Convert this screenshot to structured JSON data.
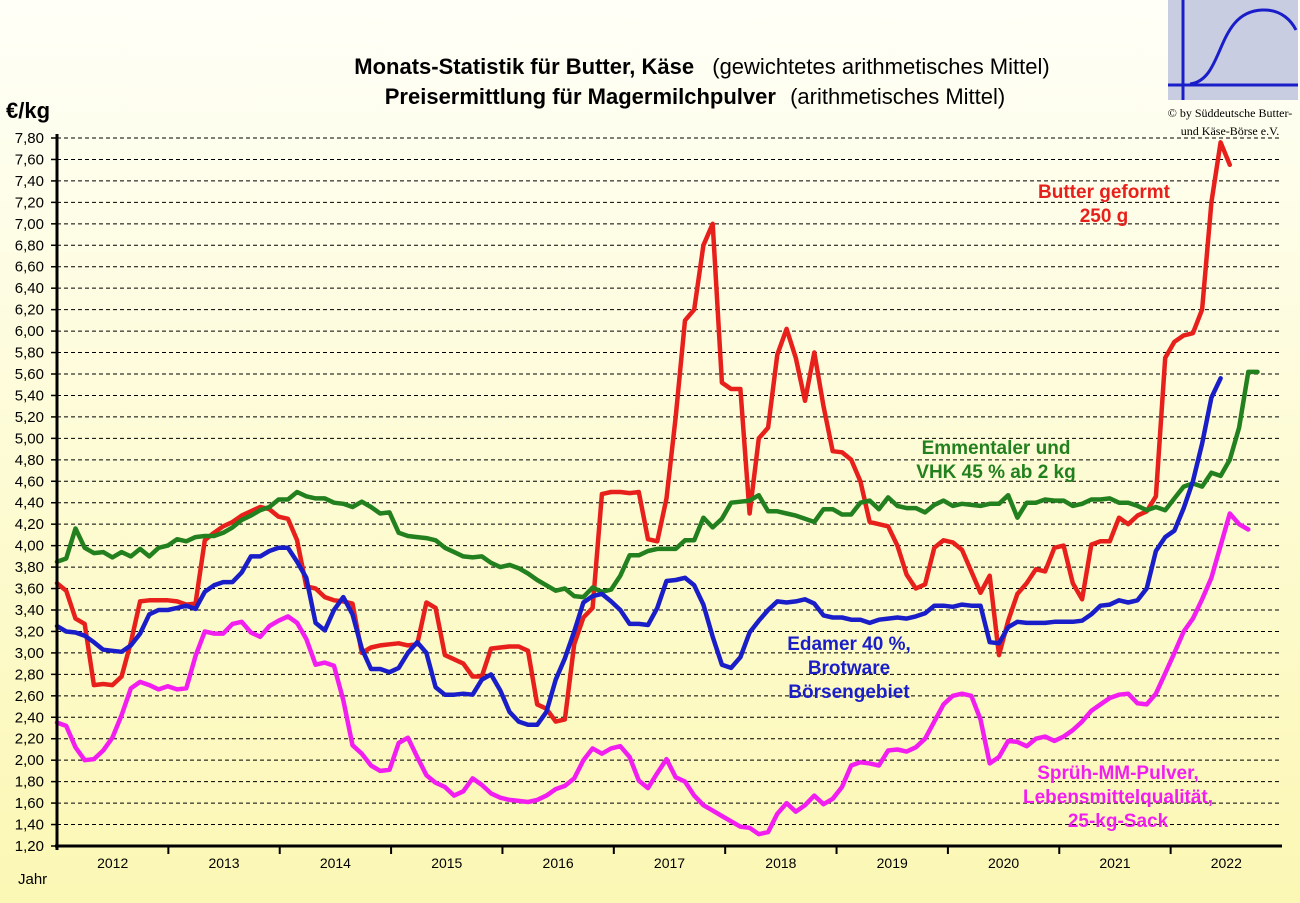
{
  "chart_data": {
    "type": "line",
    "title_line1_bold": "Monats-Statistik für Butter, Käse",
    "title_line1_normal": "(gewichtetes arithmetisches Mittel)",
    "title_line2_bold": "Preisermittlung für Magermilchpulver",
    "title_line2_normal": "(arithmetisches Mittel)",
    "ylabel": "€/kg",
    "xlabel": "Jahr",
    "copyright_line1": "© by Süddeutsche Butter-",
    "copyright_line2": "und Käse-Börse e.V.",
    "logo_icon": "s-curve-logo-icon",
    "ylim": [
      1.2,
      7.8
    ],
    "y_ticks": [
      "1,20",
      "1,40",
      "1,60",
      "1,80",
      "2,00",
      "2,20",
      "2,40",
      "2,60",
      "2,80",
      "3,00",
      "3,20",
      "3,40",
      "3,60",
      "3,80",
      "4,00",
      "4,20",
      "4,40",
      "4,60",
      "4,80",
      "5,00",
      "5,20",
      "5,40",
      "5,60",
      "5,80",
      "6,00",
      "6,20",
      "6,40",
      "6,60",
      "6,80",
      "7,00",
      "7,20",
      "7,40",
      "7,60",
      "7,80"
    ],
    "years": [
      "2012",
      "2013",
      "2014",
      "2015",
      "2016",
      "2017",
      "2018",
      "2019",
      "2020",
      "2021",
      "2022"
    ],
    "grid": "horizontal dashed",
    "series": [
      {
        "key": "butter",
        "label_lines": [
          "Butter geformt",
          "250 g"
        ],
        "color": "#e8201c",
        "values": [
          3.65,
          3.58,
          3.32,
          3.27,
          2.7,
          2.71,
          2.7,
          2.78,
          3.1,
          3.48,
          3.49,
          3.49,
          3.49,
          3.48,
          3.45,
          3.46,
          4.05,
          4.12,
          4.18,
          4.22,
          4.28,
          4.32,
          4.36,
          4.34,
          4.27,
          4.25,
          4.05,
          3.62,
          3.6,
          3.52,
          3.49,
          3.48,
          3.46,
          3.0,
          3.05,
          3.07,
          3.08,
          3.09,
          3.07,
          3.08,
          3.47,
          3.42,
          2.98,
          2.94,
          2.9,
          2.78,
          2.78,
          3.04,
          3.05,
          3.06,
          3.06,
          3.02,
          2.52,
          2.48,
          2.36,
          2.38,
          3.08,
          3.33,
          3.42,
          4.48,
          4.5,
          4.5,
          4.49,
          4.5,
          4.06,
          4.04,
          4.44,
          5.2,
          6.1,
          6.2,
          6.8,
          7.0,
          5.52,
          5.46,
          5.46,
          4.3,
          5.0,
          5.1,
          5.78,
          6.02,
          5.75,
          5.35,
          5.8,
          5.3,
          4.88,
          4.87,
          4.8,
          4.6,
          4.22,
          4.2,
          4.18,
          4.0,
          3.73,
          3.6,
          3.64,
          3.98,
          4.05,
          4.03,
          3.96,
          3.76,
          3.56,
          3.72,
          2.98,
          3.3,
          3.55,
          3.65,
          3.78,
          3.76,
          3.98,
          4.0,
          3.65,
          3.5,
          4.01,
          4.04,
          4.04,
          4.26,
          4.2,
          4.28,
          4.32,
          4.46,
          5.75,
          5.9,
          5.96,
          5.98,
          6.2,
          7.2,
          7.76,
          7.55
        ]
      },
      {
        "key": "emmentaler",
        "label_lines": [
          "Emmentaler und",
          "VHK 45 % ab 2 kg"
        ],
        "color": "#23801e",
        "values": [
          3.85,
          3.88,
          4.16,
          3.98,
          3.93,
          3.94,
          3.89,
          3.94,
          3.9,
          3.97,
          3.9,
          3.98,
          4.0,
          4.06,
          4.04,
          4.08,
          4.09,
          4.09,
          4.12,
          4.17,
          4.24,
          4.28,
          4.33,
          4.36,
          4.43,
          4.43,
          4.5,
          4.46,
          4.44,
          4.44,
          4.4,
          4.39,
          4.36,
          4.41,
          4.36,
          4.3,
          4.31,
          4.12,
          4.09,
          4.08,
          4.07,
          4.05,
          3.98,
          3.94,
          3.9,
          3.89,
          3.9,
          3.84,
          3.8,
          3.82,
          3.79,
          3.74,
          3.68,
          3.63,
          3.58,
          3.6,
          3.53,
          3.52,
          3.61,
          3.57,
          3.59,
          3.72,
          3.91,
          3.91,
          3.95,
          3.97,
          3.97,
          3.97,
          4.05,
          4.05,
          4.26,
          4.17,
          4.25,
          4.4,
          4.41,
          4.42,
          4.47,
          4.32,
          4.32,
          4.3,
          4.28,
          4.25,
          4.22,
          4.34,
          4.34,
          4.29,
          4.29,
          4.4,
          4.42,
          4.34,
          4.45,
          4.37,
          4.35,
          4.35,
          4.31,
          4.38,
          4.42,
          4.37,
          4.39,
          4.38,
          4.37,
          4.39,
          4.39,
          4.47,
          4.26,
          4.4,
          4.4,
          4.43,
          4.42,
          4.42,
          4.37,
          4.39,
          4.43,
          4.43,
          4.44,
          4.4,
          4.4,
          4.37,
          4.33,
          4.36,
          4.33,
          4.44,
          4.55,
          4.58,
          4.55,
          4.68,
          4.65,
          4.8,
          5.1,
          5.62,
          5.62
        ]
      },
      {
        "key": "edamer",
        "label_lines": [
          "Edamer 40 %,",
          "Brotware",
          "Börsengebiet"
        ],
        "color": "#1a1ec8",
        "values": [
          3.25,
          3.2,
          3.19,
          3.16,
          3.1,
          3.03,
          3.02,
          3.01,
          3.07,
          3.18,
          3.36,
          3.4,
          3.4,
          3.42,
          3.44,
          3.41,
          3.57,
          3.63,
          3.66,
          3.66,
          3.75,
          3.9,
          3.9,
          3.95,
          3.98,
          3.98,
          3.85,
          3.7,
          3.28,
          3.21,
          3.4,
          3.52,
          3.36,
          3.04,
          2.85,
          2.85,
          2.82,
          2.86,
          3.0,
          3.1,
          3.0,
          2.68,
          2.61,
          2.61,
          2.62,
          2.61,
          2.75,
          2.8,
          2.65,
          2.45,
          2.36,
          2.33,
          2.33,
          2.45,
          2.75,
          2.95,
          3.2,
          3.47,
          3.53,
          3.55,
          3.48,
          3.4,
          3.27,
          3.27,
          3.26,
          3.42,
          3.67,
          3.68,
          3.7,
          3.63,
          3.45,
          3.15,
          2.89,
          2.86,
          2.96,
          3.19,
          3.3,
          3.4,
          3.48,
          3.47,
          3.48,
          3.5,
          3.46,
          3.35,
          3.33,
          3.33,
          3.31,
          3.31,
          3.28,
          3.31,
          3.32,
          3.33,
          3.32,
          3.34,
          3.37,
          3.44,
          3.44,
          3.43,
          3.45,
          3.44,
          3.44,
          3.1,
          3.09,
          3.24,
          3.29,
          3.28,
          3.28,
          3.28,
          3.29,
          3.29,
          3.29,
          3.3,
          3.36,
          3.44,
          3.45,
          3.49,
          3.47,
          3.49,
          3.6,
          3.95,
          4.08,
          4.14,
          4.35,
          4.6,
          4.95,
          5.38,
          5.56
        ]
      },
      {
        "key": "mmp",
        "label_lines": [
          "Sprüh-MM-Pulver,",
          "Lebensmittelqualität,",
          "25-kg-Sack"
        ],
        "color": "#f21ef0",
        "values": [
          2.35,
          2.32,
          2.12,
          2.0,
          2.01,
          2.09,
          2.21,
          2.42,
          2.67,
          2.73,
          2.7,
          2.66,
          2.69,
          2.66,
          2.67,
          2.97,
          3.2,
          3.18,
          3.18,
          3.27,
          3.29,
          3.19,
          3.15,
          3.25,
          3.3,
          3.34,
          3.28,
          3.13,
          2.89,
          2.91,
          2.88,
          2.56,
          2.14,
          2.06,
          1.95,
          1.9,
          1.91,
          2.16,
          2.21,
          2.03,
          1.86,
          1.79,
          1.75,
          1.67,
          1.71,
          1.83,
          1.77,
          1.69,
          1.65,
          1.63,
          1.62,
          1.61,
          1.63,
          1.67,
          1.73,
          1.76,
          1.83,
          2.0,
          2.11,
          2.06,
          2.11,
          2.13,
          2.03,
          1.81,
          1.74,
          1.88,
          2.01,
          1.84,
          1.8,
          1.67,
          1.58,
          1.53,
          1.48,
          1.43,
          1.38,
          1.37,
          1.31,
          1.33,
          1.5,
          1.6,
          1.52,
          1.58,
          1.67,
          1.59,
          1.64,
          1.75,
          1.95,
          1.98,
          1.97,
          1.95,
          2.09,
          2.1,
          2.08,
          2.12,
          2.2,
          2.36,
          2.52,
          2.6,
          2.62,
          2.6,
          2.38,
          1.97,
          2.03,
          2.18,
          2.17,
          2.13,
          2.2,
          2.22,
          2.18,
          2.22,
          2.28,
          2.36,
          2.46,
          2.52,
          2.58,
          2.61,
          2.62,
          2.53,
          2.52,
          2.62,
          2.81,
          3.0,
          3.2,
          3.32,
          3.5,
          3.7,
          4.0,
          4.3,
          4.2,
          4.15
        ]
      }
    ]
  }
}
